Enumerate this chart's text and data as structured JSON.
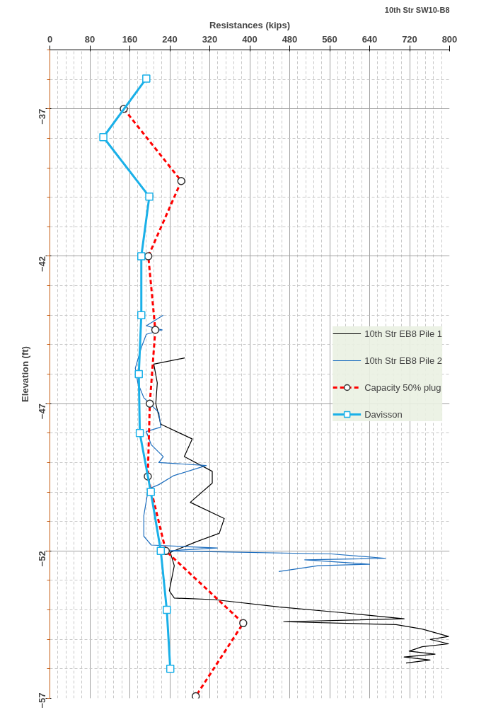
{
  "chart_data": {
    "type": "line",
    "xlabel": "Resistances (kips)",
    "ylabel": "Elevation (ft)",
    "xlim": [
      0,
      800
    ],
    "xticks": [
      0,
      80,
      160,
      240,
      320,
      400,
      480,
      560,
      640,
      720,
      800
    ],
    "ylim": [
      -57,
      -35
    ],
    "yticks": [
      -37,
      -42,
      -47,
      -52,
      -57
    ],
    "grid": true,
    "legend": "right",
    "marker": "none",
    "line_style": "solid",
    "annotations": [
      "10th Str SW10-B8"
    ],
    "series": [
      {
        "name": "10th Str EB8 Pile 1",
        "color": "#000000",
        "x": [
          270,
          208,
          215,
          212,
          222,
          285,
          269,
          325,
          325,
          281,
          349,
          339,
          291,
          241,
          249,
          239,
          249,
          328,
          458,
          589,
          709,
          468,
          693,
          745,
          798,
          761,
          798,
          745,
          719,
          771,
          709,
          761,
          713
        ],
        "values": [
          -45.45,
          -45.66,
          -46.3,
          -47.0,
          -47.7,
          -48.2,
          -48.8,
          -49.3,
          -49.7,
          -50.35,
          -50.9,
          -51.4,
          -51.7,
          -52.05,
          -52.5,
          -53.35,
          -53.6,
          -53.65,
          -53.9,
          -54.1,
          -54.3,
          -54.4,
          -54.5,
          -54.65,
          -54.9,
          -55.0,
          -55.15,
          -55.25,
          -55.4,
          -55.5,
          -55.6,
          -55.7,
          -55.8
        ]
      },
      {
        "name": "10th Str EB8 Pile 2",
        "color": "#1f6fbf",
        "x": [
          227,
          193,
          225,
          193,
          183,
          171,
          176,
          188,
          218,
          222,
          193,
          203,
          227,
          218,
          313,
          247,
          218,
          197,
          188,
          188,
          203,
          335,
          232,
          563,
          672,
          510,
          640,
          537,
          458
        ],
        "values": [
          -44.0,
          -44.36,
          -44.5,
          -44.65,
          -45.1,
          -45.8,
          -46.3,
          -46.8,
          -47.3,
          -47.8,
          -47.95,
          -48.4,
          -48.8,
          -49.0,
          -49.1,
          -49.45,
          -49.75,
          -49.9,
          -50.8,
          -51.5,
          -51.8,
          -51.9,
          -52.0,
          -52.1,
          -52.25,
          -52.3,
          -52.45,
          -52.5,
          -52.7
        ]
      },
      {
        "name": "Capacity 50% plug",
        "color": "#ff0000",
        "marker": "circle",
        "line_style": "dashed",
        "x": [
          148,
          263,
          197,
          211,
          200,
          196,
          232,
          387,
          292
        ],
        "values": [
          -37,
          -39.45,
          -42,
          -44.5,
          -47,
          -49.47,
          -52,
          -54.45,
          -56.93
        ]
      },
      {
        "name": "Davisson",
        "color": "#1ab0e8",
        "marker": "square",
        "x": [
          193,
          107,
          199,
          183,
          183,
          178,
          180,
          202,
          222,
          234,
          241
        ],
        "values": [
          -35.97,
          -37.96,
          -39.98,
          -42,
          -44,
          -46,
          -48,
          -50,
          -52,
          -54,
          -56
        ]
      }
    ]
  }
}
